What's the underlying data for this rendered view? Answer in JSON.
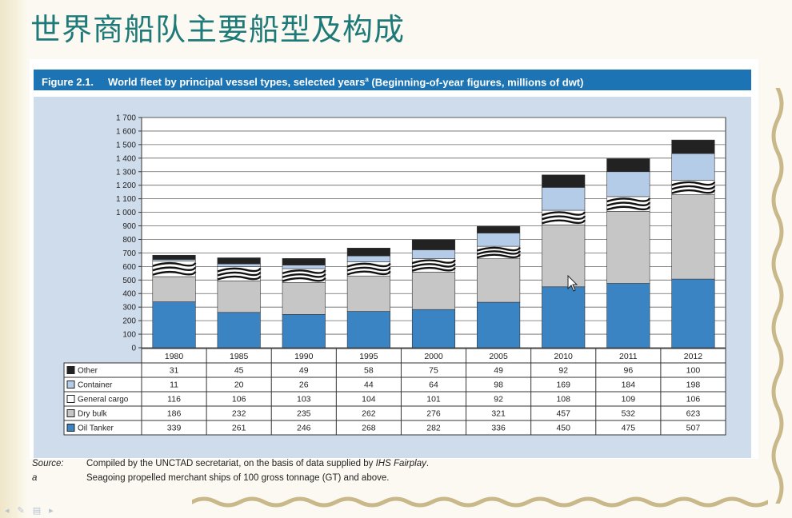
{
  "slide_title": "世界商船队主要船型及构成",
  "figure": {
    "number": "Figure 2.1.",
    "title": "World fleet by principal vessel types, selected years",
    "superscript": "a",
    "subtitle": "(Beginning-of-year figures, millions of dwt)"
  },
  "colors": {
    "oil_tanker": "#3a84c4",
    "dry_bulk": "#c6c6c6",
    "general_cargo": "#ffffff",
    "container": "#b5cce8",
    "other": "#222222",
    "header": "#1c74b4",
    "plot_background": "#cfdcec",
    "title_text": "#1e7a78"
  },
  "chart_data": {
    "type": "bar",
    "stacked": true,
    "categories": [
      "1980",
      "1985",
      "1990",
      "1995",
      "2000",
      "2005",
      "2010",
      "2011",
      "2012"
    ],
    "ylim": [
      0,
      1700
    ],
    "yticks": [
      "0",
      "100",
      "200",
      "300",
      "400",
      "500",
      "600",
      "700",
      "800",
      "900",
      "1 000",
      "1 100",
      "1 200",
      "1 300",
      "1 400",
      "1 500",
      "1 600",
      "1 700"
    ],
    "grid": true,
    "legend_position": "table-left",
    "series": [
      {
        "name": "Oil Tanker",
        "color_key": "oil_tanker",
        "values": [
          339,
          261,
          246,
          268,
          282,
          336,
          450,
          475,
          507
        ]
      },
      {
        "name": "Dry bulk",
        "color_key": "dry_bulk",
        "values": [
          186,
          232,
          235,
          262,
          276,
          321,
          457,
          532,
          623
        ]
      },
      {
        "name": "General cargo",
        "color_key": "general_cargo",
        "values": [
          116,
          106,
          103,
          104,
          101,
          92,
          108,
          109,
          106
        ]
      },
      {
        "name": "Container",
        "color_key": "container",
        "values": [
          11,
          20,
          26,
          44,
          64,
          98,
          169,
          184,
          198
        ]
      },
      {
        "name": "Other",
        "color_key": "other",
        "values": [
          31,
          45,
          49,
          58,
          75,
          49,
          92,
          96,
          100
        ]
      }
    ],
    "table_row_order": [
      "Other",
      "Container",
      "General cargo",
      "Dry bulk",
      "Oil Tanker"
    ]
  },
  "notes": {
    "source_key": "Source:",
    "source_text": "Compiled by the UNCTAD secretariat, on the basis of data supplied by ",
    "source_em": "IHS Fairplay",
    "source_end": ".",
    "footnote_key": "a",
    "footnote_text": "Seagoing propelled merchant ships of 100 gross tonnage (GT) and above."
  },
  "nav": [
    "◂",
    "✎",
    "▤",
    "▸"
  ]
}
